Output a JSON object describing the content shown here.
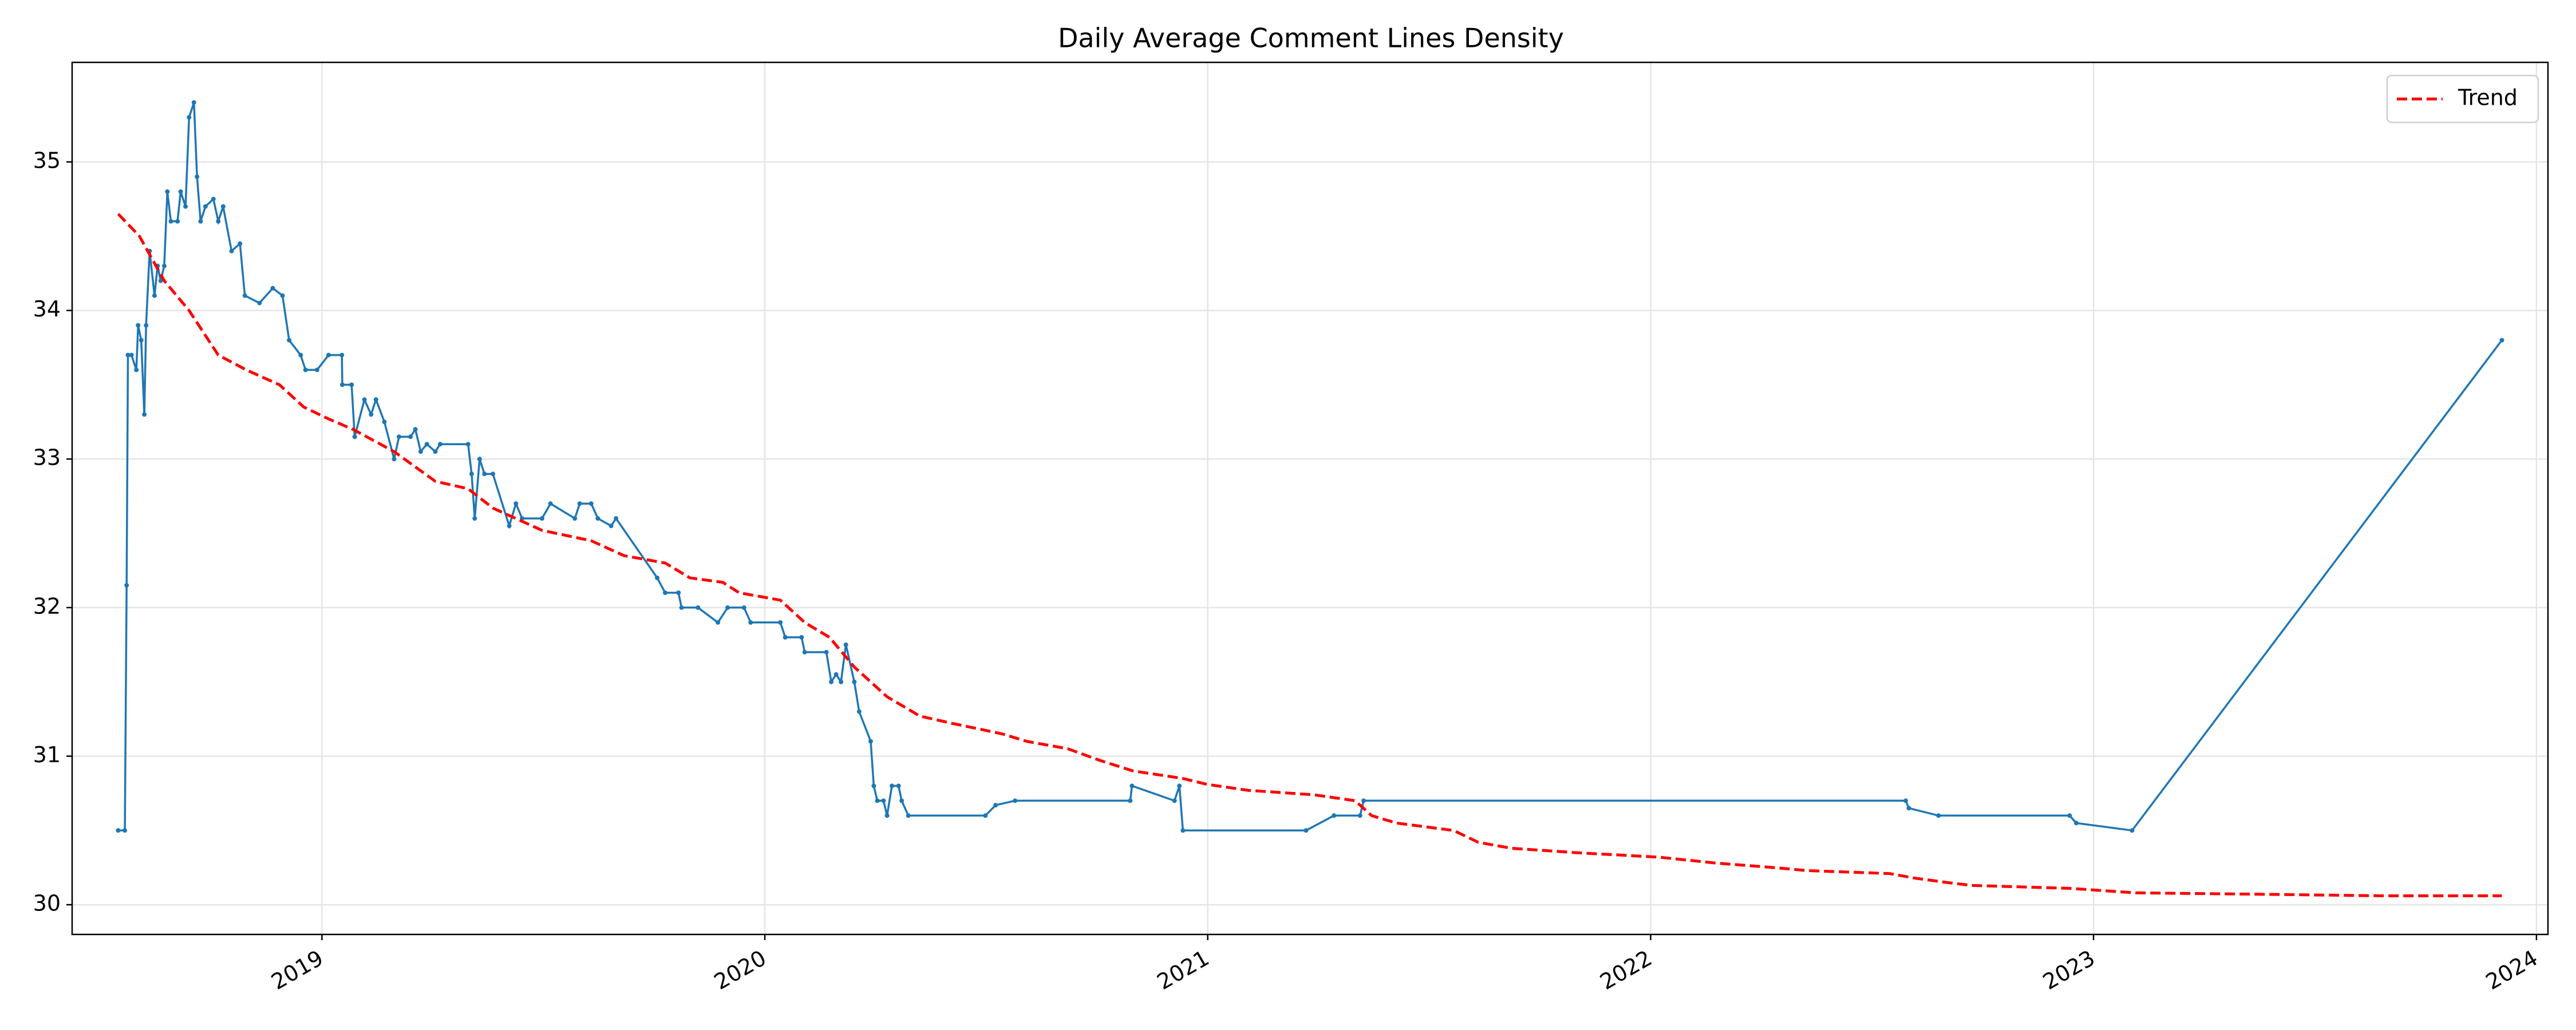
{
  "chart_data": {
    "type": "line",
    "title": "Daily Average Comment Lines Density",
    "xlim": [
      2018.436,
      2024.026
    ],
    "xticks": [
      2019,
      2020,
      2021,
      2022,
      2023,
      2024
    ],
    "ylim": [
      29.8,
      35.67
    ],
    "yticks": [
      30,
      31,
      32,
      33,
      34,
      35
    ],
    "grid": true,
    "legend": "upper right",
    "series": [
      {
        "color": "#1f77b4",
        "style": "solid",
        "markers": true,
        "x": [
          2018.54,
          2018.555,
          2018.559,
          2018.562,
          2018.57,
          2018.581,
          2018.585,
          2018.592,
          2018.599,
          2018.603,
          2018.611,
          2018.622,
          2018.629,
          2018.636,
          2018.644,
          2018.651,
          2018.659,
          2018.674,
          2018.681,
          2018.692,
          2018.7,
          2018.711,
          2018.718,
          2018.726,
          2018.737,
          2018.755,
          2018.766,
          2018.777,
          2018.796,
          2018.815,
          2018.826,
          2018.859,
          2018.889,
          2018.911,
          2018.926,
          2018.952,
          2018.963,
          2018.989,
          2019.015,
          2019.045,
          2019.046,
          2019.067,
          2019.074,
          2019.096,
          2019.111,
          2019.122,
          2019.141,
          2019.163,
          2019.174,
          2019.2,
          2019.211,
          2019.223,
          2019.237,
          2019.256,
          2019.267,
          2019.33,
          2019.338,
          2019.345,
          2019.356,
          2019.367,
          2019.386,
          2019.423,
          2019.438,
          2019.452,
          2019.497,
          2019.516,
          2019.571,
          2019.582,
          2019.608,
          2019.623,
          2019.653,
          2019.664,
          2019.757,
          2019.775,
          2019.805,
          2019.812,
          2019.849,
          2019.894,
          2019.916,
          2019.953,
          2019.968,
          2020.035,
          2020.046,
          2020.083,
          2020.09,
          2020.139,
          2020.15,
          2020.161,
          2020.172,
          2020.183,
          2020.202,
          2020.213,
          2020.239,
          2020.246,
          2020.254,
          2020.268,
          2020.276,
          2020.287,
          2020.302,
          2020.309,
          2020.324,
          2020.498,
          2020.521,
          2020.565,
          2020.825,
          2020.829,
          2020.925,
          2020.936,
          2020.944,
          2021.222,
          2021.285,
          2021.344,
          2021.352,
          2022.576,
          2022.583,
          2022.65,
          2022.946,
          2022.961,
          2023.087,
          2023.922
        ],
        "values": [
          30.5,
          30.5,
          32.15,
          33.7,
          33.7,
          33.6,
          33.9,
          33.8,
          33.3,
          33.9,
          34.4,
          34.1,
          34.3,
          34.2,
          34.3,
          34.8,
          34.6,
          34.6,
          34.8,
          34.7,
          35.3,
          35.4,
          34.9,
          34.6,
          34.7,
          34.75,
          34.6,
          34.7,
          34.4,
          34.45,
          34.1,
          34.05,
          34.15,
          34.1,
          33.8,
          33.7,
          33.6,
          33.6,
          33.7,
          33.7,
          33.5,
          33.5,
          33.15,
          33.4,
          33.3,
          33.4,
          33.25,
          33.0,
          33.15,
          33.15,
          33.2,
          33.05,
          33.1,
          33.05,
          33.1,
          33.1,
          32.9,
          32.6,
          33.0,
          32.9,
          32.9,
          32.55,
          32.7,
          32.6,
          32.6,
          32.7,
          32.6,
          32.7,
          32.7,
          32.6,
          32.55,
          32.6,
          32.2,
          32.1,
          32.1,
          32.0,
          32.0,
          31.9,
          32.0,
          32.0,
          31.9,
          31.9,
          31.8,
          31.8,
          31.7,
          31.7,
          31.5,
          31.55,
          31.5,
          31.75,
          31.5,
          31.3,
          31.1,
          30.8,
          30.7,
          30.7,
          30.6,
          30.8,
          30.8,
          30.7,
          30.6,
          30.6,
          30.67,
          30.7,
          30.7,
          30.8,
          30.7,
          30.8,
          30.5,
          30.5,
          30.6,
          30.6,
          30.7,
          30.7,
          30.65,
          30.6,
          30.6,
          30.55,
          30.5,
          33.8
        ]
      },
      {
        "name": "Trend",
        "color": "#ff0000",
        "style": "dashed",
        "markers": false,
        "x": [
          2018.54,
          2018.588,
          2018.644,
          2018.7,
          2018.766,
          2018.829,
          2018.904,
          2018.959,
          2019.015,
          2019.07,
          2019.163,
          2019.256,
          2019.33,
          2019.386,
          2019.497,
          2019.608,
          2019.682,
          2019.775,
          2019.831,
          2019.905,
          2019.942,
          2020.035,
          2020.09,
          2020.146,
          2020.202,
          2020.276,
          2020.35,
          2020.424,
          2020.536,
          2020.591,
          2020.684,
          2020.758,
          2020.832,
          2020.944,
          2020.999,
          2021.092,
          2021.24,
          2021.333,
          2021.37,
          2021.426,
          2021.555,
          2021.611,
          2021.685,
          2021.834,
          2022.019,
          2022.149,
          2022.279,
          2022.353,
          2022.539,
          2022.594,
          2022.668,
          2022.724,
          2022.947,
          2023.095,
          2023.392,
          2023.651,
          2023.922
        ],
        "values": [
          34.65,
          34.5,
          34.2,
          34.0,
          33.7,
          33.6,
          33.5,
          33.35,
          33.27,
          33.2,
          33.05,
          32.85,
          32.8,
          32.67,
          32.52,
          32.45,
          32.35,
          32.3,
          32.2,
          32.17,
          32.1,
          32.05,
          31.9,
          31.8,
          31.6,
          31.4,
          31.27,
          31.22,
          31.15,
          31.1,
          31.05,
          30.97,
          30.9,
          30.85,
          30.81,
          30.77,
          30.74,
          30.7,
          30.6,
          30.55,
          30.5,
          30.42,
          30.38,
          30.35,
          30.32,
          30.28,
          30.25,
          30.23,
          30.21,
          30.18,
          30.15,
          30.13,
          30.11,
          30.08,
          30.07,
          30.06,
          30.06
        ]
      }
    ]
  }
}
